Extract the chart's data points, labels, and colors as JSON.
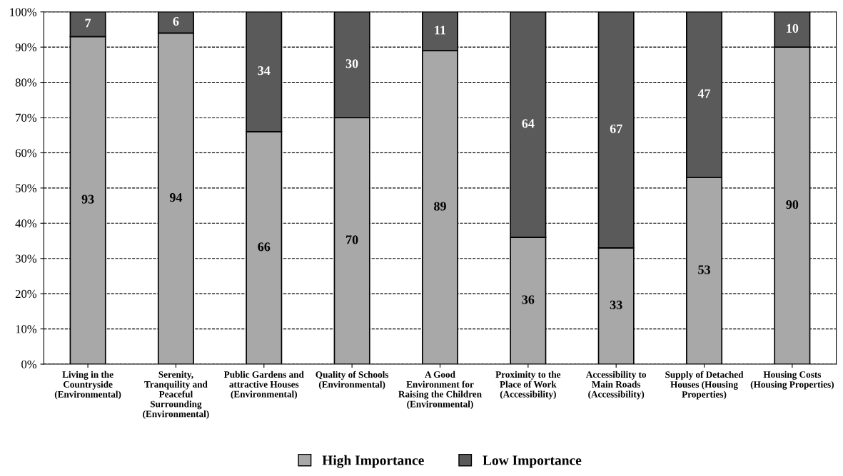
{
  "chart_data": {
    "type": "bar",
    "stacked": true,
    "data_labels": true,
    "grid": "y",
    "legend": "bottom",
    "categories": [
      "Living in the\nCountryside\n(Environmental)",
      "Serenity,\nTranquility and\nPeaceful\nSurrounding\n(Environmental)",
      "Public Gardens and\nattractive Houses\n(Environmental)",
      "Quality of Schools\n(Environmental)",
      "A Good\nEnvironment for\nRaising the Children\n(Environmental)",
      "Proximity to the\nPlace of Work\n(Accessibility)",
      "Accessibility to\nMain Roads\n(Accessibility)",
      "Supply of Detached\nHouses (Housing\nProperties)",
      "Housing Costs\n(Housing Properties)"
    ],
    "series": [
      {
        "name": "High Importance",
        "color": "#a8a8a8",
        "values": [
          93,
          94,
          66,
          70,
          89,
          36,
          33,
          53,
          90
        ]
      },
      {
        "name": "Low Importance",
        "color": "#5a5a5a",
        "values": [
          7,
          6,
          34,
          30,
          11,
          64,
          67,
          47,
          10
        ]
      }
    ],
    "ylim": [
      0,
      100
    ],
    "yticks": [
      {
        "value": 0,
        "label": "0%"
      },
      {
        "value": 10,
        "label": "10%"
      },
      {
        "value": 20,
        "label": "20%"
      },
      {
        "value": 30,
        "label": "30%"
      },
      {
        "value": 40,
        "label": "40%"
      },
      {
        "value": 50,
        "label": "50%"
      },
      {
        "value": 60,
        "label": "60%"
      },
      {
        "value": 70,
        "label": "70%"
      },
      {
        "value": 80,
        "label": "80%"
      },
      {
        "value": 90,
        "label": "90%"
      },
      {
        "value": 100,
        "label": "100%"
      }
    ]
  }
}
